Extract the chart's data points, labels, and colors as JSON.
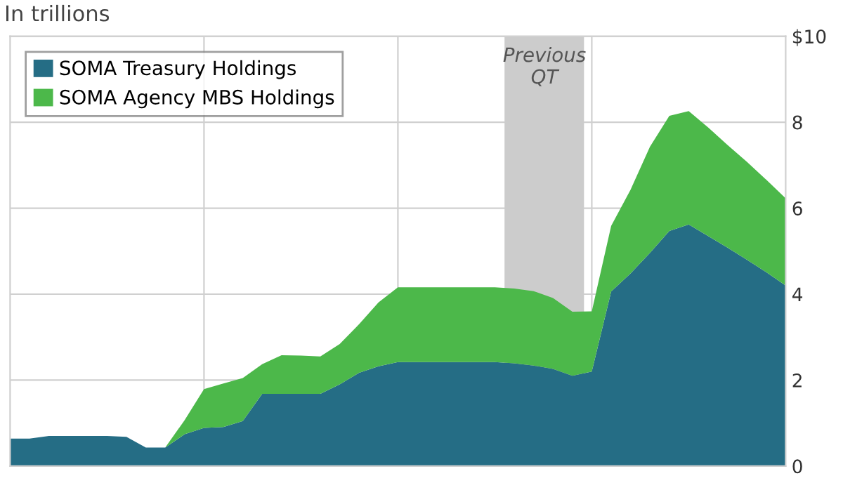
{
  "chart_data": {
    "type": "area",
    "subtitle": "In trillions",
    "stacked": true,
    "categories": [
      null,
      null,
      null,
      null,
      null,
      null,
      null,
      null,
      null,
      null,
      null,
      null,
      null,
      null,
      null,
      null,
      null,
      null,
      null,
      null,
      null,
      null,
      null,
      null,
      null,
      null,
      null,
      null,
      null,
      null,
      null,
      null,
      null,
      null,
      null,
      null,
      null,
      null,
      null,
      null,
      null
    ],
    "series": [
      {
        "name": "SOMA Treasury Holdings",
        "color": "#256d85",
        "values": [
          0.64,
          0.64,
          0.7,
          0.7,
          0.7,
          0.7,
          0.68,
          0.43,
          0.43,
          0.74,
          0.89,
          0.91,
          1.05,
          1.68,
          1.68,
          1.68,
          1.68,
          1.9,
          2.17,
          2.32,
          2.42,
          2.42,
          2.42,
          2.42,
          2.42,
          2.42,
          2.39,
          2.34,
          2.26,
          2.1,
          2.2,
          4.06,
          4.48,
          4.96,
          5.47,
          5.62,
          5.35,
          5.08,
          4.8,
          4.51,
          4.2
        ]
      },
      {
        "name": "SOMA Agency MBS Holdings",
        "color": "#4cb84a",
        "values": [
          0,
          0,
          0,
          0,
          0,
          0,
          0,
          0,
          0,
          0.33,
          0.9,
          1.01,
          1.0,
          0.69,
          0.9,
          0.89,
          0.87,
          0.94,
          1.13,
          1.49,
          1.74,
          1.74,
          1.74,
          1.74,
          1.74,
          1.74,
          1.74,
          1.73,
          1.65,
          1.49,
          1.4,
          1.53,
          1.95,
          2.47,
          2.68,
          2.64,
          2.53,
          2.39,
          2.28,
          2.15,
          2.03
        ]
      }
    ],
    "ylim": [
      0,
      10
    ],
    "yticks": [
      0,
      2,
      4,
      6,
      8,
      {
        "value": 10,
        "label": "$10"
      }
    ],
    "annotations": [
      "Previous\nQT"
    ],
    "grid": true,
    "legend": "top left"
  }
}
